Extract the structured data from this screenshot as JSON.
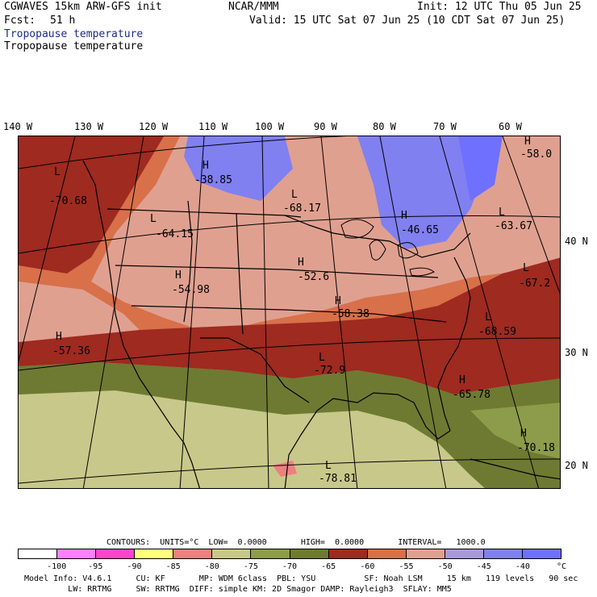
{
  "header": {
    "model": "CGWAVES 15km ARW-GFS init",
    "org": "NCAR/MMM",
    "init": "Init: 12 UTC Thu 05 Jun 25",
    "fcst_label": "Fcst:",
    "fcst_value": "51 h",
    "valid": "Valid: 15 UTC Sat 07 Jun 25 (10 CDT Sat 07 Jun 25)",
    "field_title_1": "Tropopause temperature",
    "field_title_2": "Tropopause temperature"
  },
  "map": {
    "longitude_labels": [
      "140 W",
      "130 W",
      "120 W",
      "110 W",
      "100 W",
      "90 W",
      "80 W",
      "70 W",
      "60 W"
    ],
    "latitude_labels": [
      "40 N",
      "30 N",
      "20 N"
    ],
    "extrema": [
      {
        "type": "L",
        "value": "-70.68"
      },
      {
        "type": "H",
        "value": "-38.85"
      },
      {
        "type": "L",
        "value": "-64.15"
      },
      {
        "type": "L",
        "value": "-68.17"
      },
      {
        "type": "H",
        "value": "-46.65"
      },
      {
        "type": "H",
        "value": "-58.0"
      },
      {
        "type": "L",
        "value": "-63.67"
      },
      {
        "type": "H",
        "value": "-52.6"
      },
      {
        "type": "H",
        "value": "-54.98"
      },
      {
        "type": "H",
        "value": "-58.38"
      },
      {
        "type": "L",
        "value": "-67.2"
      },
      {
        "type": "L",
        "value": "-68.59"
      },
      {
        "type": "H",
        "value": "-57.36"
      },
      {
        "type": "L",
        "value": "-72.9"
      },
      {
        "type": "H",
        "value": "-65.78"
      },
      {
        "type": "H",
        "value": "-70.18"
      },
      {
        "type": "L",
        "value": "-78.81"
      }
    ]
  },
  "contours": {
    "line": "CONTOURS:  UNITS=°C  LOW=  0.0000       HIGH=  0.0000       INTERVAL=   1000.0"
  },
  "colorbar": {
    "colors": [
      "#ffffff",
      "#ff80ff",
      "#ff44cc",
      "#ffff80",
      "#f08080",
      "#c8c88a",
      "#8c9c4a",
      "#6e7a32",
      "#9e2a20",
      "#d8704a",
      "#e0a090",
      "#a89ad8",
      "#8080f0",
      "#7070ff"
    ],
    "ticks": [
      "-100",
      "-95",
      "-90",
      "-85",
      "-80",
      "-75",
      "-70",
      "-65",
      "-60",
      "-55",
      "-50",
      "-45",
      "-40",
      "°C"
    ]
  },
  "footer": {
    "line1": "Model Info: V4.6.1     CU: KF       MP: WDM 6class  PBL: YSU          SF: Noah LSM     15 km   119 levels   90 sec",
    "line2": "         LW: RRTMG     SW: RRTMG  DIFF: simple KM: 2D Smagor DAMP: Rayleigh3  SFLAY: MM5"
  }
}
